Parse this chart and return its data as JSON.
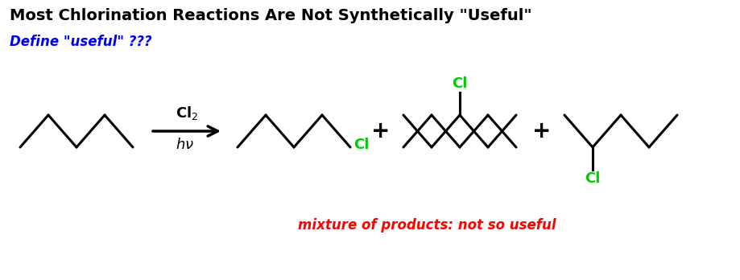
{
  "title": "Most Chlorination Reactions Are Not Synthetically \"Useful\"",
  "title_color": "#000000",
  "title_fontsize": 14,
  "title_bold": true,
  "define_text": "Define \"useful\" ???",
  "define_color": "#0000FF",
  "define_fontsize": 12,
  "mixture_text": "mixture of products: not so useful",
  "mixture_color": "#FF0000",
  "mixture_fontsize": 12,
  "cl2_label": "Cl$_2$",
  "hv_label": "$h\\nu$",
  "arrow_color": "#000000",
  "line_color": "#000000",
  "cl_color": "#00CC00",
  "bg_color": "#FFFFFF",
  "line_width": 2.2
}
